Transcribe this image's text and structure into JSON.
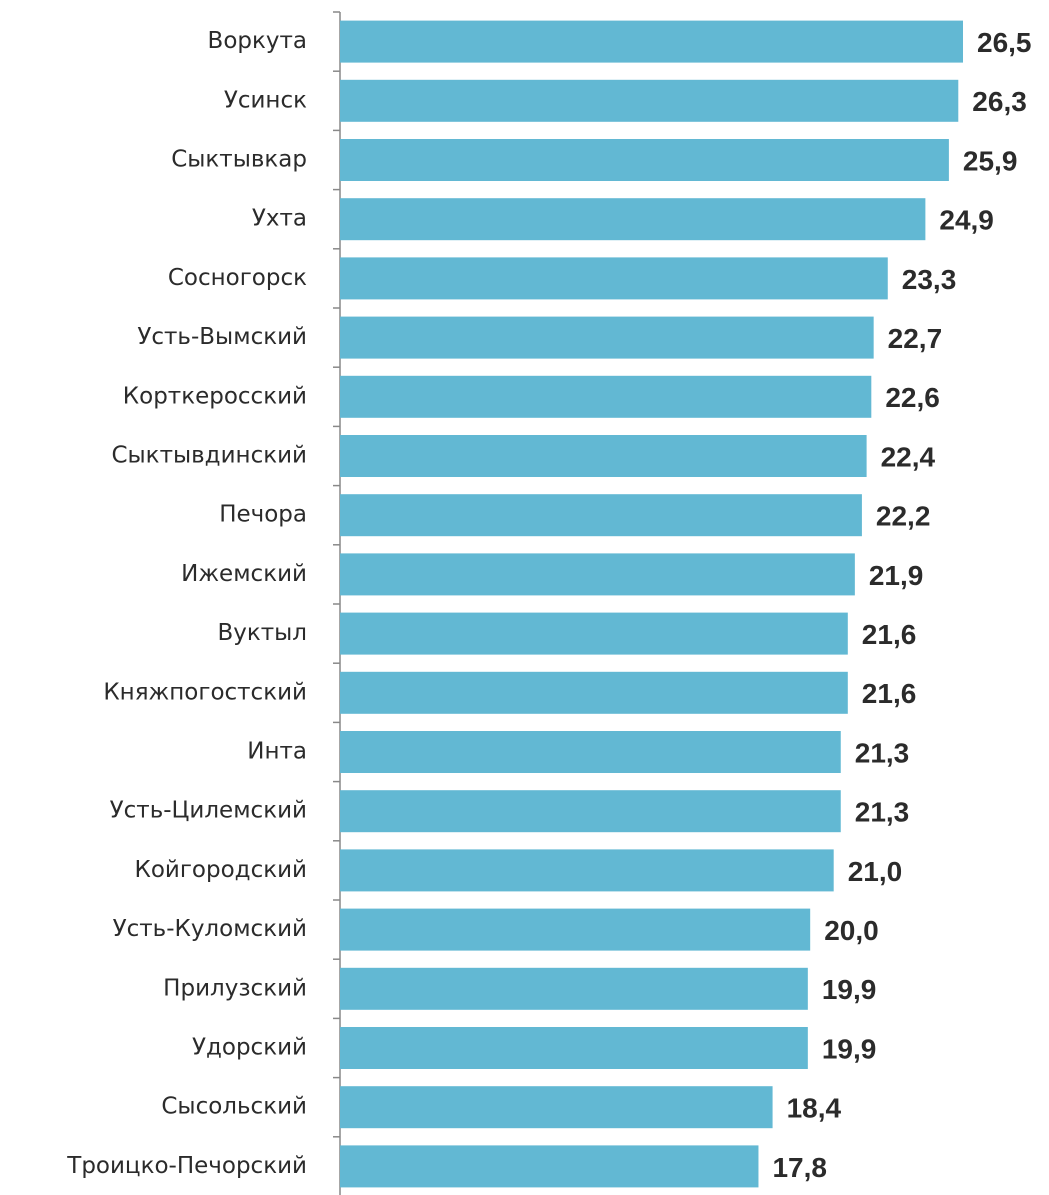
{
  "chart_data": {
    "type": "bar",
    "orientation": "horizontal",
    "color": "#62b8d3",
    "categories": [
      "Воркута",
      "Усинск",
      "Сыктывкар",
      "Ухта",
      "Сосногорск",
      "Усть-Вымский",
      "Корткеросский",
      "Сыктывдинский",
      "Печора",
      "Ижемский",
      "Вуктыл",
      "Княжпогостский",
      "Инта",
      "Усть-Цилемский",
      "Койгородский",
      "Усть-Куломский",
      "Прилузский",
      "Удорский",
      "Сысольский",
      "Троицко-Печорский"
    ],
    "values": [
      26.5,
      26.3,
      25.9,
      24.9,
      23.3,
      22.7,
      22.6,
      22.4,
      22.2,
      21.9,
      21.6,
      21.6,
      21.3,
      21.3,
      21.0,
      20.0,
      19.9,
      19.9,
      18.4,
      17.8
    ],
    "value_labels": [
      "26,5",
      "26,3",
      "25,9",
      "24,9",
      "23,3",
      "22,7",
      "22,6",
      "22,4",
      "22,2",
      "21,9",
      "21,6",
      "21,6",
      "21,3",
      "21,3",
      "21,0",
      "20,0",
      "19,9",
      "19,9",
      "18,4",
      "17,8"
    ]
  }
}
